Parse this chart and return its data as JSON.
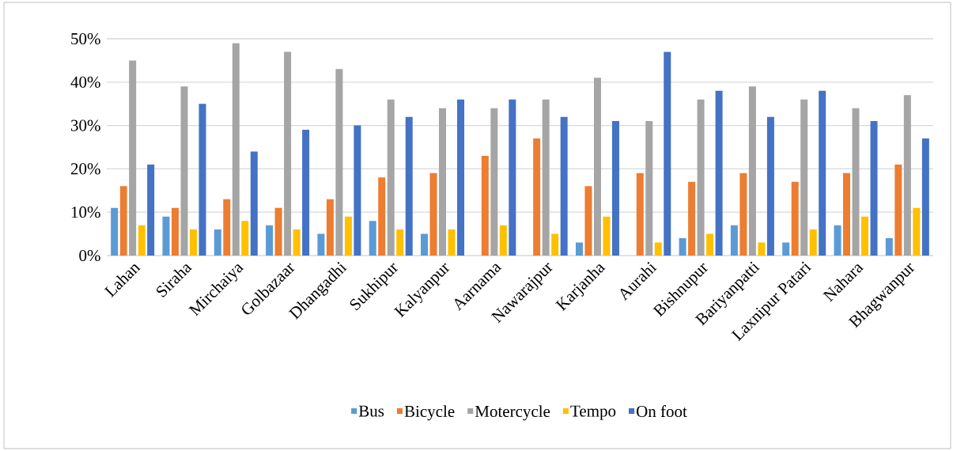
{
  "chart_data": {
    "type": "bar",
    "categories": [
      "Lahan",
      "Siraha",
      "Mirchaiya",
      "Golbazaar",
      "Dhangadhi",
      "Sukhipur",
      "Kalyanpur",
      "Aarnama",
      "Nawarajpur",
      "Karjanha",
      "Aurahi",
      "Bishnupur",
      "Bariyanpatti",
      "Laxnipur Patari",
      "Nahara",
      "Bhagwanpur"
    ],
    "series": [
      {
        "name": "Bus",
        "color": "#5b9bd5",
        "values": [
          11,
          9,
          6,
          7,
          5,
          8,
          5,
          null,
          null,
          3,
          null,
          4,
          7,
          3,
          7,
          4
        ]
      },
      {
        "name": "Bicycle",
        "color": "#ed7d31",
        "values": [
          16,
          11,
          13,
          11,
          13,
          18,
          19,
          23,
          27,
          16,
          19,
          17,
          19,
          17,
          19,
          21
        ]
      },
      {
        "name": "Motercycle",
        "color": "#a5a5a5",
        "values": [
          45,
          39,
          49,
          47,
          43,
          36,
          34,
          34,
          36,
          41,
          31,
          36,
          39,
          36,
          34,
          37
        ]
      },
      {
        "name": "Tempo",
        "color": "#ffc000",
        "values": [
          7,
          6,
          8,
          6,
          9,
          6,
          6,
          7,
          5,
          9,
          3,
          5,
          3,
          6,
          9,
          11
        ]
      },
      {
        "name": "On foot",
        "color": "#4472c4",
        "values": [
          21,
          35,
          24,
          29,
          30,
          32,
          36,
          36,
          32,
          31,
          47,
          38,
          32,
          38,
          31,
          27
        ]
      }
    ],
    "ylim": [
      0,
      50
    ],
    "yticks": [
      {
        "value": 0,
        "label": "0%"
      },
      {
        "value": 10,
        "label": "10%"
      },
      {
        "value": 20,
        "label": "20%"
      },
      {
        "value": 30,
        "label": "30%"
      },
      {
        "value": 40,
        "label": "40%"
      },
      {
        "value": 50,
        "label": "50%"
      }
    ],
    "grid": "y",
    "legend": "bottom"
  }
}
